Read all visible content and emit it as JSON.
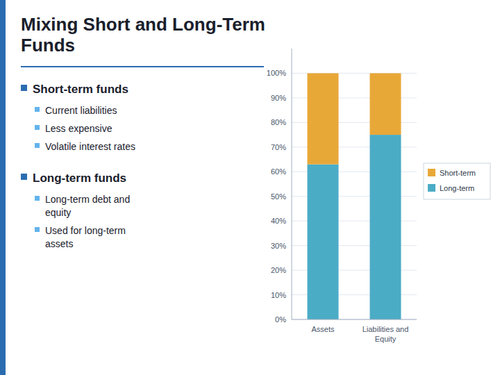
{
  "chart_data": {
    "type": "bar",
    "title": "Mixing Short and Long-Term\nFunds",
    "annotations": [
      [
        "Short-term funds",
        "Current liabilities",
        "Less expensive",
        "Volatile interest rates"
      ],
      [
        "Long-term funds",
        "Long-term debt and\nequity",
        "Used for long-term\nassets"
      ]
    ],
    "categories": [
      "Assets",
      "Liabilities and\nEquity"
    ],
    "series": [
      {
        "name": "Long-term",
        "color": "#4bacc6",
        "values": [
          63,
          75
        ]
      },
      {
        "name": "Short-term",
        "color": "#e8a838",
        "values": [
          37,
          25
        ]
      }
    ],
    "stacked": true,
    "ylim": [
      0,
      110
    ],
    "yticks": [
      {
        "value": 0,
        "label": "0%"
      },
      {
        "value": 10,
        "label": "10%"
      },
      {
        "value": 20,
        "label": "20%"
      },
      {
        "value": 30,
        "label": "30%"
      },
      {
        "value": 40,
        "label": "40%"
      },
      {
        "value": 50,
        "label": "50%"
      },
      {
        "value": 60,
        "label": "60%"
      },
      {
        "value": 70,
        "label": "70%"
      },
      {
        "value": 80,
        "label": "80%"
      },
      {
        "value": 90,
        "label": "90%"
      },
      {
        "value": 100,
        "label": "100%"
      }
    ],
    "grid": true,
    "legend": "right"
  }
}
